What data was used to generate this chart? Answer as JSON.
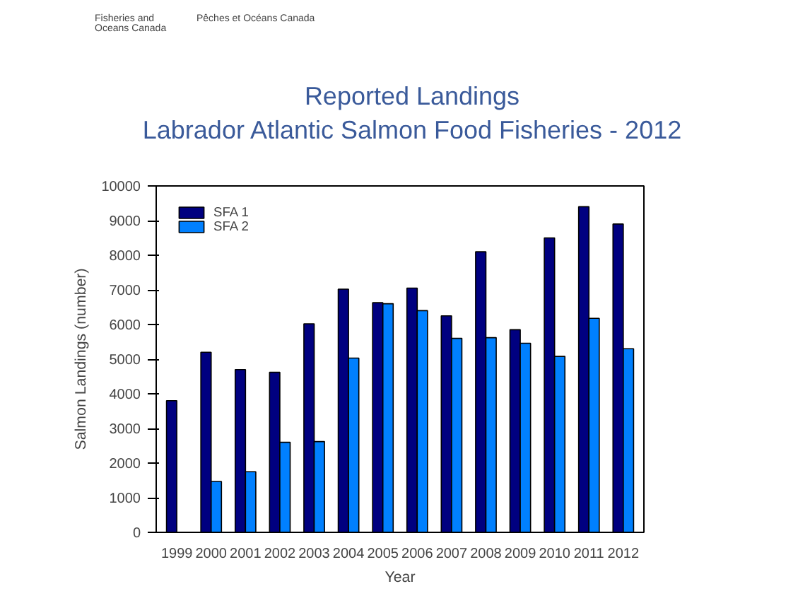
{
  "chart_data": {
    "type": "bar",
    "title": "Reported Landings",
    "subtitle": "Labrador Atlantic Salmon Food Fisheries - 2012",
    "xlabel": "Year",
    "ylabel": "Salmon Landings (number)",
    "annotations": [
      "Fisheries and Oceans Canada",
      "Pêches et Océans Canada"
    ],
    "categories": [
      "1999",
      "2000",
      "2001",
      "2002",
      "2003",
      "2004",
      "2005",
      "2006",
      "2007",
      "2008",
      "2009",
      "2010",
      "2011",
      "2012"
    ],
    "series": [
      {
        "name": "SFA 1",
        "color": "#000080",
        "values": [
          3800,
          5200,
          4700,
          4620,
          6020,
          7020,
          6630,
          7050,
          6250,
          8100,
          5850,
          8500,
          9400,
          8900
        ]
      },
      {
        "name": "SFA 2",
        "color": "#0080ff",
        "values": [
          null,
          1470,
          1750,
          2600,
          2620,
          5030,
          6600,
          6400,
          5600,
          5620,
          5460,
          5080,
          6180,
          5300
        ]
      }
    ],
    "ylim": [
      0,
      10000
    ],
    "yticks": [
      0,
      1000,
      2000,
      3000,
      4000,
      5000,
      6000,
      7000,
      8000,
      9000,
      10000
    ],
    "grid": false,
    "legend": "top left"
  }
}
